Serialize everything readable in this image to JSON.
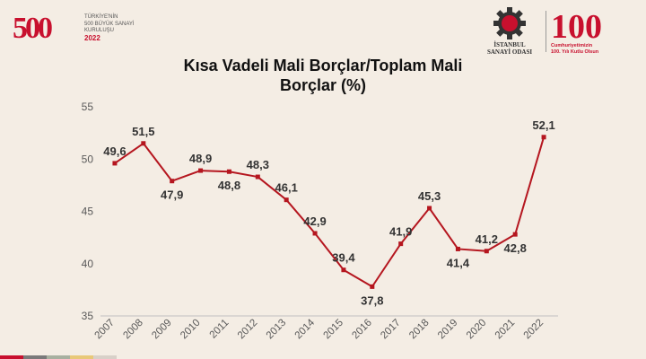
{
  "branding": {
    "left_logo_number": "500",
    "left_logo_lines": [
      "TÜRKİYE'NİN",
      "500 BÜYÜK SANAYİ",
      "KURULUŞU",
      "2022"
    ],
    "right_logo_lines": [
      "İSTANBUL",
      "SANAYİ ODASI"
    ],
    "centennial_number": "100",
    "centennial_lines": [
      "Cumhuriyetimizin",
      "100. Yılı Kutlu Olsun"
    ],
    "brand_red": "#c8102e"
  },
  "chart_data": {
    "type": "line",
    "title_lines": [
      "Kısa Vadeli Mali Borçlar/Toplam Mali",
      "Borçlar (%)"
    ],
    "categories": [
      "2007",
      "2008",
      "2009",
      "2010",
      "2011",
      "2012",
      "2013",
      "2014",
      "2015",
      "2016",
      "2017",
      "2018",
      "2019",
      "2020",
      "2021",
      "2022"
    ],
    "values": [
      49.6,
      51.5,
      47.9,
      48.9,
      48.8,
      48.3,
      46.1,
      42.9,
      39.4,
      37.8,
      41.9,
      45.3,
      41.4,
      41.2,
      42.8,
      52.1
    ],
    "value_labels": [
      "49,6",
      "51,5",
      "47,9",
      "48,9",
      "48,8",
      "48,3",
      "46,1",
      "42,9",
      "39,4",
      "37,8",
      "41,9",
      "45,3",
      "41,4",
      "41,2",
      "42,8",
      "52,1"
    ],
    "label_positions": [
      "above",
      "above",
      "below",
      "above",
      "below",
      "above",
      "above",
      "above",
      "above",
      "below",
      "above",
      "above",
      "below",
      "above",
      "below",
      "above"
    ],
    "y_ticks": [
      35,
      40,
      45,
      50,
      55
    ],
    "ylim": [
      35,
      55
    ],
    "xlabel": "",
    "ylabel": "",
    "grid": false,
    "line_color": "#b5161f",
    "axis_color": "#bfbfbf"
  }
}
